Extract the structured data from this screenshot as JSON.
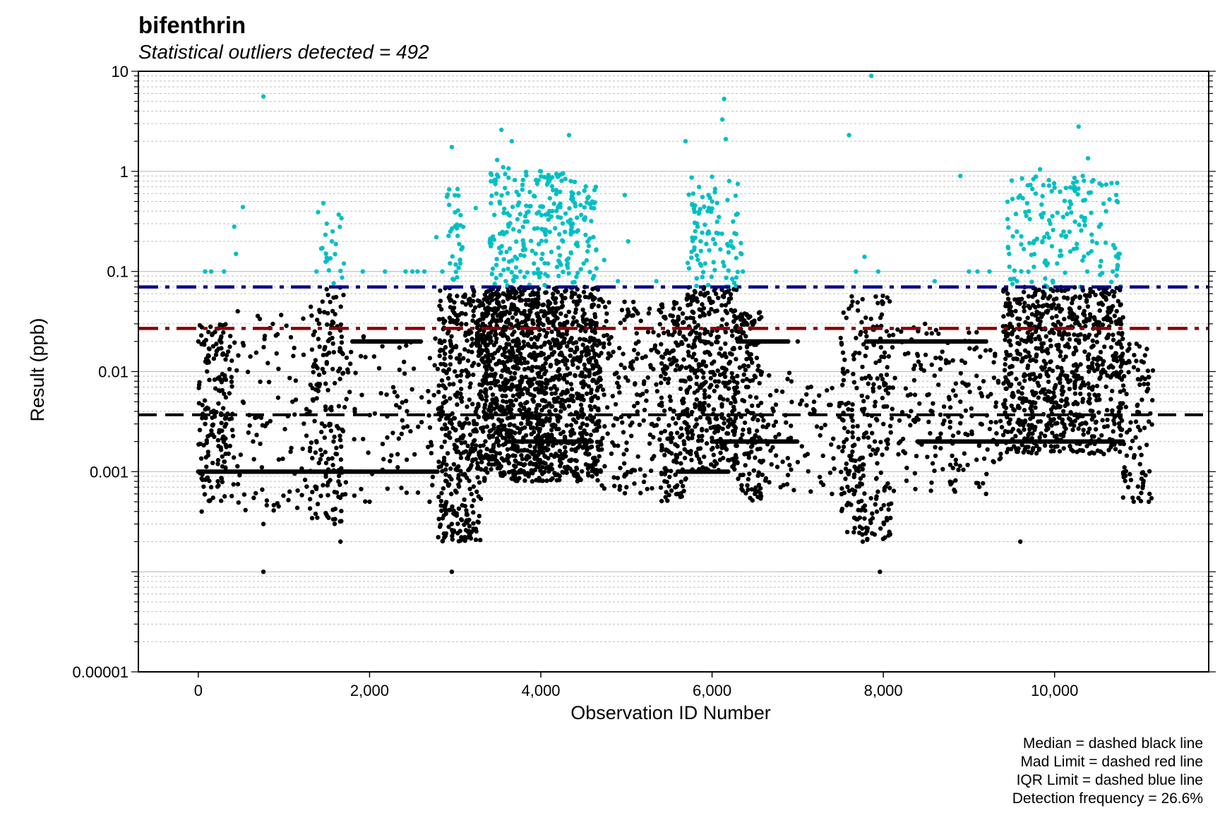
{
  "chart_data": {
    "type": "scatter",
    "title": "bifenthrin",
    "subtitle": "Statistical outliers detected = 492",
    "xlabel": "Observation ID Number",
    "ylabel": "Result (ppb)",
    "xlim": [
      -700,
      11800
    ],
    "ylim": [
      1e-05,
      10
    ],
    "yscale": "log",
    "xticks": [
      0,
      2000,
      4000,
      6000,
      8000,
      10000
    ],
    "xtick_labels": [
      "0",
      "2,000",
      "4,000",
      "6,000",
      "8,000",
      "10,000"
    ],
    "yticks": [
      1e-05,
      0.001,
      0.01,
      0.1,
      1,
      10
    ],
    "ytick_labels": [
      "0.00001",
      "0.001",
      "0.01",
      "0.1",
      "1",
      "10"
    ],
    "grid": "horizontal, major solid and minor dotted",
    "reference_lines": {
      "median": 0.0037,
      "mad_limit": 0.027,
      "iqr_limit": 0.07
    },
    "captions": [
      "Median = dashed black line",
      "Mad Limit = dashed red line",
      "IQR Limit = dashed blue line",
      "Detection frequency = 26.6%"
    ],
    "colors": {
      "normal": "#000000",
      "outlier": "#00BFC4",
      "median_line": "#000000",
      "mad_line": "#8B0000",
      "iqr_line": "#00008B",
      "grid_major": "#BEBEBE",
      "grid_minor": "#BEBEBE"
    },
    "outliers_sample": [
      [
        80,
        0.1
      ],
      [
        150,
        0.1
      ],
      [
        300,
        0.1
      ],
      [
        420,
        0.28
      ],
      [
        440,
        0.15
      ],
      [
        520,
        0.44
      ],
      [
        760,
        5.6
      ],
      [
        1380,
        0.1
      ],
      [
        1460,
        0.48
      ],
      [
        1500,
        0.3
      ],
      [
        1560,
        0.2
      ],
      [
        1640,
        0.37
      ],
      [
        1700,
        0.12
      ],
      [
        1920,
        0.1
      ],
      [
        2180,
        0.1
      ],
      [
        2420,
        0.1
      ],
      [
        2500,
        0.1
      ],
      [
        2560,
        0.1
      ],
      [
        2640,
        0.1
      ],
      [
        2780,
        0.22
      ],
      [
        2850,
        0.1
      ],
      [
        2930,
        0.66
      ],
      [
        2960,
        1.75
      ],
      [
        3020,
        0.27
      ],
      [
        3060,
        0.12
      ],
      [
        3240,
        0.43
      ],
      [
        3490,
        1.3
      ],
      [
        3540,
        2.6
      ],
      [
        3560,
        1.1
      ],
      [
        3610,
        0.38
      ],
      [
        3660,
        2.0
      ],
      [
        3700,
        0.14
      ],
      [
        3760,
        0.1
      ],
      [
        3800,
        0.18
      ],
      [
        3880,
        0.45
      ],
      [
        3920,
        0.12
      ],
      [
        3960,
        0.27
      ],
      [
        4000,
        1.0
      ],
      [
        4020,
        0.15
      ],
      [
        4080,
        0.09
      ],
      [
        4200,
        0.35
      ],
      [
        4260,
        0.2
      ],
      [
        4330,
        2.3
      ],
      [
        4350,
        0.8
      ],
      [
        4380,
        0.5
      ],
      [
        4420,
        0.25
      ],
      [
        4500,
        0.12
      ],
      [
        4560,
        0.18
      ],
      [
        4620,
        0.09
      ],
      [
        4740,
        0.13
      ],
      [
        4900,
        0.08
      ],
      [
        4980,
        0.58
      ],
      [
        5020,
        0.2
      ],
      [
        5350,
        0.08
      ],
      [
        5690,
        2.0
      ],
      [
        5780,
        0.6
      ],
      [
        5830,
        0.28
      ],
      [
        5870,
        0.16
      ],
      [
        5920,
        0.12
      ],
      [
        6000,
        0.5
      ],
      [
        6080,
        0.35
      ],
      [
        6120,
        3.3
      ],
      [
        6140,
        5.3
      ],
      [
        6160,
        2.1
      ],
      [
        6200,
        0.8
      ],
      [
        6220,
        0.2
      ],
      [
        6300,
        0.75
      ],
      [
        6360,
        0.1
      ],
      [
        7600,
        2.3
      ],
      [
        7680,
        0.1
      ],
      [
        7780,
        0.14
      ],
      [
        7860,
        9.0
      ],
      [
        7940,
        0.1
      ],
      [
        8600,
        0.08
      ],
      [
        8900,
        0.9
      ],
      [
        9000,
        0.1
      ],
      [
        9100,
        0.1
      ],
      [
        9240,
        0.1
      ],
      [
        9470,
        0.15
      ],
      [
        9560,
        0.25
      ],
      [
        9620,
        0.85
      ],
      [
        9700,
        0.4
      ],
      [
        9780,
        0.6
      ],
      [
        9830,
        1.05
      ],
      [
        9880,
        0.22
      ],
      [
        9950,
        0.3
      ],
      [
        10030,
        0.12
      ],
      [
        10100,
        0.35
      ],
      [
        10180,
        0.5
      ],
      [
        10280,
        2.8
      ],
      [
        10330,
        0.9
      ],
      [
        10390,
        1.35
      ],
      [
        10440,
        0.2
      ],
      [
        10520,
        0.28
      ],
      [
        10600,
        0.4
      ],
      [
        10680,
        0.1
      ],
      [
        10720,
        0.58
      ],
      [
        10760,
        0.15
      ]
    ],
    "normal_sample": [
      [
        0,
        0.001
      ],
      [
        0,
        0.02
      ],
      [
        40,
        0.0004
      ],
      [
        80,
        0.003
      ],
      [
        150,
        0.0007
      ],
      [
        300,
        0.006
      ],
      [
        460,
        0.04
      ],
      [
        520,
        0.005
      ],
      [
        640,
        0.002
      ],
      [
        760,
        0.0003
      ],
      [
        760,
        0.0001
      ],
      [
        1000,
        0.001
      ],
      [
        1100,
        0.005
      ],
      [
        1380,
        0.0007
      ],
      [
        1450,
        0.05
      ],
      [
        1500,
        0.012
      ],
      [
        1580,
        0.002
      ],
      [
        1660,
        0.0002
      ],
      [
        1800,
        0.02
      ],
      [
        2000,
        0.0005
      ],
      [
        2400,
        0.001
      ],
      [
        2700,
        0.0005
      ],
      [
        2960,
        0.0003
      ],
      [
        2960,
        0.0001
      ],
      [
        3020,
        0.03
      ],
      [
        3060,
        0.008
      ],
      [
        3560,
        0.05
      ],
      [
        3700,
        0.02
      ],
      [
        3900,
        0.0008
      ],
      [
        4100,
        0.004
      ],
      [
        4400,
        0.06
      ],
      [
        4560,
        0.015
      ],
      [
        4700,
        0.001
      ],
      [
        5000,
        0.0007
      ],
      [
        5300,
        0.003
      ],
      [
        5600,
        0.0006
      ],
      [
        5900,
        0.02
      ],
      [
        6200,
        0.002
      ],
      [
        6500,
        0.0006
      ],
      [
        6800,
        0.0007
      ],
      [
        7000,
        0.02
      ],
      [
        7400,
        0.0006
      ],
      [
        7640,
        0.05
      ],
      [
        7760,
        0.0002
      ],
      [
        7960,
        0.0001
      ],
      [
        8200,
        0.002
      ],
      [
        8600,
        0.02
      ],
      [
        8900,
        0.005
      ],
      [
        9200,
        0.0006
      ],
      [
        9480,
        0.03
      ],
      [
        9600,
        0.0002
      ],
      [
        9800,
        0.05
      ],
      [
        10000,
        0.002
      ],
      [
        10400,
        0.01
      ],
      [
        10700,
        0.003
      ],
      [
        10860,
        0.0007
      ],
      [
        11100,
        0.0005
      ]
    ],
    "horizontal_bands": [
      [
        1800,
        2600,
        0.02
      ],
      [
        1700,
        2800,
        0.001
      ],
      [
        3600,
        4600,
        0.002
      ],
      [
        6000,
        7000,
        0.002
      ],
      [
        6300,
        6900,
        0.02
      ],
      [
        7800,
        9200,
        0.02
      ],
      [
        9300,
        10800,
        0.002
      ],
      [
        5600,
        6200,
        0.001
      ],
      [
        8400,
        9400,
        0.002
      ],
      [
        0,
        1800,
        0.001
      ]
    ]
  }
}
